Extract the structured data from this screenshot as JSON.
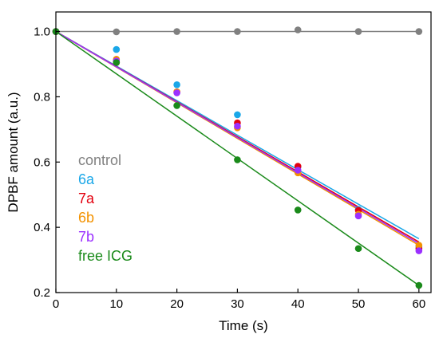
{
  "chart_data": {
    "type": "scatter",
    "title": "",
    "xlabel": "Time (s)",
    "ylabel": "DPBF amount (a.u.)",
    "xlim": [
      0,
      62
    ],
    "ylim": [
      0.2,
      1.06
    ],
    "xticks": [
      0,
      10,
      20,
      30,
      40,
      50,
      60
    ],
    "yticks": [
      0.2,
      0.4,
      0.6,
      0.8,
      1.0
    ],
    "xtick_labels": [
      "0",
      "10",
      "20",
      "30",
      "40",
      "50",
      "60"
    ],
    "ytick_labels": [
      "0.2",
      "0.4",
      "0.6",
      "0.8",
      "1.0"
    ],
    "grid": false,
    "legend_position": "lower-left",
    "series": [
      {
        "name": "control",
        "color": "#808080",
        "x": [
          0,
          10,
          20,
          30,
          40,
          50,
          60
        ],
        "y": [
          1.0,
          0.999,
          1.0,
          1.0,
          1.005,
          1.0,
          1.0
        ],
        "fit": [
          1.0,
          1.0
        ]
      },
      {
        "name": "6a",
        "color": "#1aa7e8",
        "x": [
          0,
          10,
          20,
          30,
          40,
          50,
          60
        ],
        "y": [
          1.0,
          0.945,
          0.837,
          0.745,
          0.585,
          0.455,
          0.34
        ],
        "fit": [
          1.0,
          0.365
        ]
      },
      {
        "name": "7a",
        "color": "#e3000f",
        "x": [
          0,
          10,
          20,
          30,
          40,
          50,
          60
        ],
        "y": [
          1.0,
          0.905,
          0.815,
          0.72,
          0.587,
          0.452,
          0.335
        ],
        "fit": [
          1.0,
          0.355
        ]
      },
      {
        "name": "6b",
        "color": "#f39200",
        "x": [
          0,
          10,
          20,
          30,
          40,
          50,
          60
        ],
        "y": [
          1.0,
          0.915,
          0.815,
          0.705,
          0.567,
          0.44,
          0.345
        ],
        "fit": [
          1.0,
          0.345
        ]
      },
      {
        "name": "7b",
        "color": "#9b30ff",
        "x": [
          0,
          10,
          20,
          30,
          40,
          50,
          60
        ],
        "y": [
          1.0,
          0.91,
          0.812,
          0.71,
          0.575,
          0.435,
          0.328
        ],
        "fit": [
          1.0,
          0.35
        ]
      },
      {
        "name": "free ICG",
        "color": "#1a8a1a",
        "x": [
          0,
          10,
          20,
          30,
          40,
          50,
          60
        ],
        "y": [
          1.0,
          0.905,
          0.773,
          0.607,
          0.453,
          0.335,
          0.222
        ],
        "fit": [
          1.0,
          0.222
        ]
      }
    ]
  }
}
